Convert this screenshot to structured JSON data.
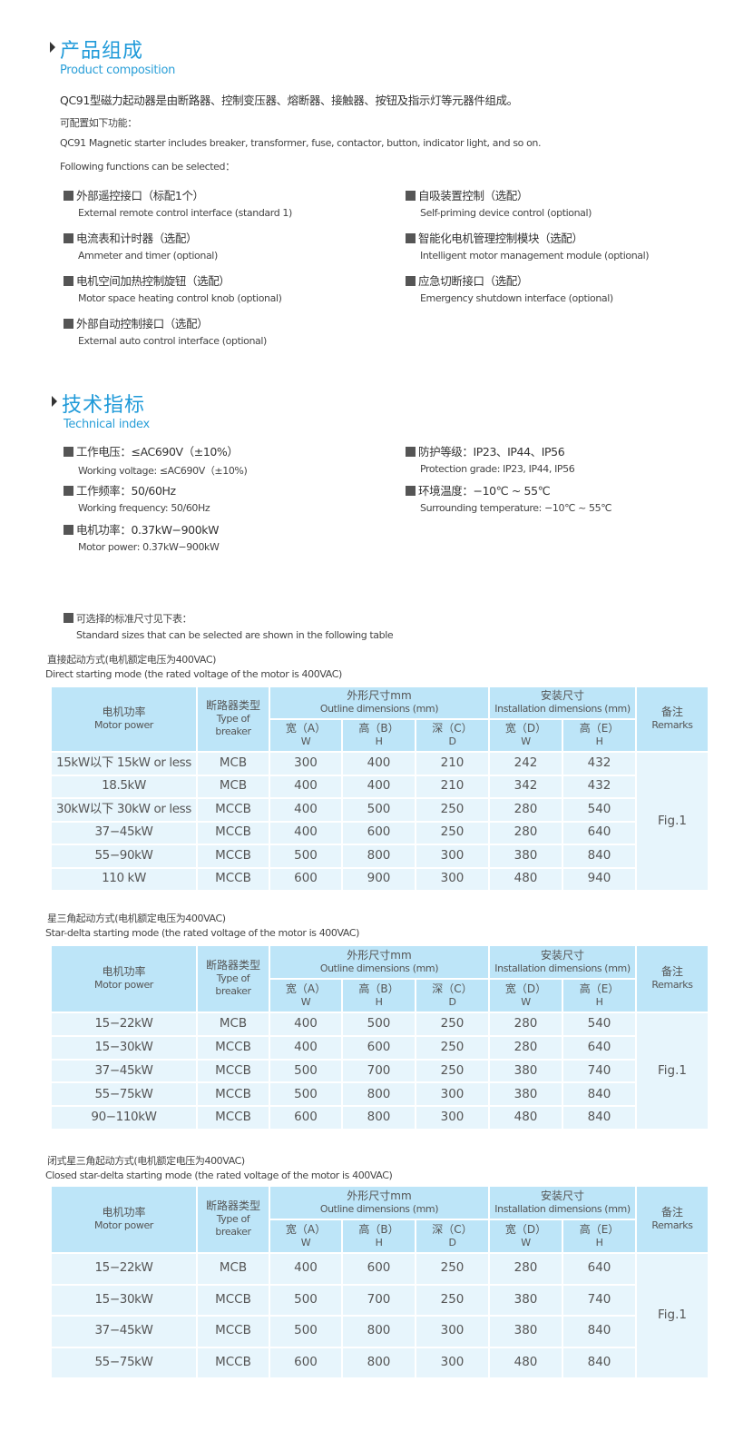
{
  "composition": {
    "title_cn": "产品组成",
    "title_en": "Product composition",
    "intro_cn": "QC91型磁力起动器是由断路器、控制变压器、熔断器、接触器、按钮及指示灯等元器件组成。",
    "config_cn": "可配置如下功能：",
    "intro_en": "QC91 Magnetic starter includes breaker, transformer, fuse, contactor, button, indicator light, and so on.",
    "config_en": "Following functions can be selected：",
    "left": [
      {
        "cn": "外部遥控接口（标配1个）",
        "en": "External remote control interface (standard 1)"
      },
      {
        "cn": "电流表和计时器（选配）",
        "en": "Ammeter and timer (optional)"
      },
      {
        "cn": "电机空间加热控制旋钮（选配）",
        "en": "Motor space heating control knob (optional)"
      },
      {
        "cn": "外部自动控制接口（选配）",
        "en": "External auto control interface (optional)"
      }
    ],
    "right": [
      {
        "cn": "自吸装置控制（选配）",
        "en": "Self-priming device control (optional)"
      },
      {
        "cn": "智能化电机管理控制模块（选配）",
        "en": "Intelligent motor management module (optional)"
      },
      {
        "cn": "应急切断接口（选配）",
        "en": "Emergency shutdown interface (optional)"
      }
    ]
  },
  "technical": {
    "title_cn": "技术指标",
    "title_en": "Technical index",
    "left": [
      {
        "cn": "工作电压：≤AC690V（±10%）",
        "en": "Working voltage: ≤AC690V（±10%)"
      },
      {
        "cn": "工作频率：50/60Hz",
        "en": "Working frequency: 50/60Hz"
      },
      {
        "cn": "电机功率：0.37kW−900kW",
        "en": "Motor power: 0.37kW−900kW"
      }
    ],
    "right": [
      {
        "cn": "防护等级：IP23、IP44、IP56",
        "en": "Protection grade: IP23, IP44, IP56"
      },
      {
        "cn": "环境温度：−10℃ ~ 55℃",
        "en": "Surrounding temperature: −10℃ ~ 55℃"
      }
    ],
    "sizes_cn": "可选择的标准尺寸见下表：",
    "sizes_en": "Standard sizes that can be selected are shown in the following table"
  },
  "header": {
    "power_cn": "电机功率",
    "power_en": "Motor power",
    "breaker_cn": "断路器类型",
    "breaker_en": "Type of breaker",
    "outline_cn": "外形尺寸mm",
    "outline_en": "Outline dimensions (mm)",
    "install_cn": "安装尺寸",
    "install_en": "Installation dimensions (mm)",
    "remarks_cn": "备注",
    "remarks_en": "Remarks",
    "sub": [
      [
        "宽（A）",
        "W"
      ],
      [
        "高（B）",
        "H"
      ],
      [
        "深（C）",
        "D"
      ],
      [
        "宽（D）",
        "W"
      ],
      [
        "高（E）",
        "H"
      ]
    ]
  },
  "tables": [
    {
      "caption_cn": "直接起动方式(电机额定电压为400VAC)",
      "caption_en": "Direct starting mode (the rated voltage of the motor is 400VAC)",
      "remark": "Fig.1",
      "rows": [
        [
          "15kW以下 15kW or less",
          "MCB",
          "300",
          "400",
          "210",
          "242",
          "432"
        ],
        [
          "18.5kW",
          "MCB",
          "400",
          "400",
          "210",
          "342",
          "432"
        ],
        [
          "30kW以下 30kW or less",
          "MCCB",
          "400",
          "500",
          "250",
          "280",
          "540"
        ],
        [
          "37−45kW",
          "MCCB",
          "400",
          "600",
          "250",
          "280",
          "640"
        ],
        [
          "55−90kW",
          "MCCB",
          "500",
          "800",
          "300",
          "380",
          "840"
        ],
        [
          "110 kW",
          "MCCB",
          "600",
          "900",
          "300",
          "480",
          "940"
        ]
      ]
    },
    {
      "caption_cn": "星三角起动方式(电机额定电压为400VAC)",
      "caption_en": "Star-delta starting mode (the rated voltage of the motor is 400VAC)",
      "remark": "Fig.1",
      "rows": [
        [
          "15−22kW",
          "MCB",
          "400",
          "500",
          "250",
          "280",
          "540"
        ],
        [
          "15−30kW",
          "MCCB",
          "400",
          "600",
          "250",
          "280",
          "640"
        ],
        [
          "37−45kW",
          "MCCB",
          "500",
          "700",
          "250",
          "380",
          "740"
        ],
        [
          "55−75kW",
          "MCCB",
          "500",
          "800",
          "300",
          "380",
          "840"
        ],
        [
          "90−110kW",
          "MCCB",
          "600",
          "800",
          "300",
          "480",
          "840"
        ]
      ]
    },
    {
      "caption_cn": "闭式星三角起动方式(电机额定电压为400VAC)",
      "caption_en": "Closed star-delta starting mode (the rated voltage of the motor is 400VAC)",
      "remark": "Fig.1",
      "rows": [
        [
          "15−22kW",
          "MCB",
          "400",
          "600",
          "250",
          "280",
          "640"
        ],
        [
          "15−30kW",
          "MCCB",
          "500",
          "700",
          "250",
          "380",
          "740"
        ],
        [
          "37−45kW",
          "MCCB",
          "500",
          "800",
          "300",
          "380",
          "840"
        ],
        [
          "55−75kW",
          "MCCB",
          "600",
          "800",
          "300",
          "480",
          "840"
        ]
      ]
    }
  ],
  "colors": {
    "title": "#1f9ad9",
    "header_bg": "#bde5f8",
    "body_bg": "#e7f5fc"
  }
}
